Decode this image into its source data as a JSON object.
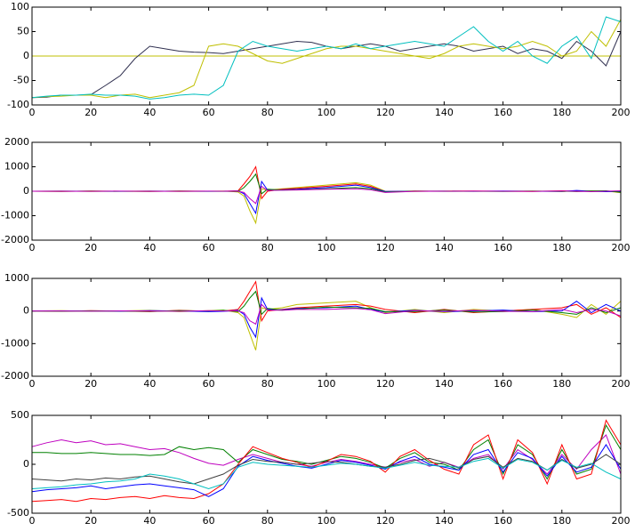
{
  "chart_data": [
    {
      "type": "line",
      "xlim": [
        0,
        200
      ],
      "xticks": [
        0,
        20,
        40,
        60,
        80,
        100,
        120,
        140,
        160,
        180,
        200
      ],
      "ylim": [
        -100,
        100
      ],
      "yticks": [
        -100,
        -50,
        0,
        50,
        100
      ],
      "x": [
        0,
        5,
        10,
        15,
        20,
        25,
        30,
        35,
        40,
        45,
        50,
        55,
        60,
        65,
        70,
        75,
        80,
        85,
        90,
        95,
        100,
        105,
        110,
        115,
        120,
        125,
        130,
        135,
        140,
        145,
        150,
        155,
        160,
        165,
        170,
        175,
        180,
        185,
        190,
        195,
        200
      ],
      "series": [
        {
          "color": "#bfbf00",
          "values": [
            0,
            0,
            0,
            0,
            0,
            0,
            0,
            0,
            0,
            0,
            0,
            0,
            0,
            0,
            0,
            0,
            0,
            0,
            0,
            0,
            0,
            0,
            0,
            0,
            0,
            0,
            0,
            0,
            0,
            0,
            0,
            0,
            0,
            0,
            0,
            0,
            0,
            0,
            0,
            0,
            0
          ]
        },
        {
          "color": "#303050",
          "values": [
            -85,
            -84,
            -80,
            -80,
            -79,
            -60,
            -40,
            -5,
            20,
            15,
            10,
            8,
            7,
            5,
            10,
            15,
            20,
            25,
            30,
            28,
            20,
            15,
            20,
            25,
            20,
            10,
            15,
            20,
            25,
            20,
            10,
            15,
            20,
            5,
            15,
            10,
            -5,
            30,
            10,
            -20,
            50
          ]
        },
        {
          "color": "#bfbf00",
          "values": [
            -85,
            -83,
            -82,
            -80,
            -80,
            -85,
            -80,
            -78,
            -85,
            -80,
            -75,
            -60,
            20,
            25,
            20,
            5,
            -10,
            -15,
            -5,
            5,
            15,
            20,
            20,
            15,
            10,
            5,
            0,
            -5,
            5,
            20,
            25,
            20,
            15,
            20,
            30,
            20,
            0,
            10,
            50,
            20,
            75
          ]
        },
        {
          "color": "#00bfbf",
          "values": [
            -85,
            -82,
            -80,
            -80,
            -78,
            -80,
            -80,
            -82,
            -88,
            -85,
            -80,
            -78,
            -80,
            -60,
            10,
            30,
            20,
            15,
            10,
            15,
            20,
            15,
            25,
            15,
            20,
            25,
            30,
            25,
            20,
            40,
            60,
            30,
            10,
            30,
            0,
            -15,
            20,
            40,
            -5,
            80,
            70
          ]
        }
      ]
    },
    {
      "type": "line",
      "xlim": [
        0,
        200
      ],
      "xticks": [
        0,
        20,
        40,
        60,
        80,
        100,
        120,
        140,
        160,
        180,
        200
      ],
      "ylim": [
        -2000,
        2000
      ],
      "yticks": [
        -2000,
        -1000,
        0,
        1000,
        2000
      ],
      "x": [
        0,
        10,
        20,
        30,
        40,
        50,
        60,
        65,
        70,
        72,
        74,
        76,
        78,
        80,
        85,
        90,
        100,
        110,
        115,
        120,
        130,
        140,
        150,
        160,
        170,
        180,
        185,
        190,
        195,
        200
      ],
      "series": [
        {
          "color": "#bfbf00",
          "values": [
            0,
            10,
            -10,
            0,
            10,
            -10,
            0,
            10,
            -30,
            -200,
            -800,
            -1300,
            100,
            50,
            100,
            150,
            250,
            350,
            250,
            0,
            -10,
            10,
            0,
            0,
            10,
            -10,
            20,
            0,
            10,
            -60
          ]
        },
        {
          "color": "#ff0000",
          "values": [
            0,
            -10,
            10,
            0,
            -10,
            10,
            0,
            0,
            20,
            300,
            600,
            1000,
            -300,
            0,
            80,
            120,
            200,
            300,
            200,
            -20,
            10,
            0,
            10,
            0,
            -10,
            20,
            -10,
            10,
            0,
            -30
          ]
        },
        {
          "color": "#0000ff",
          "values": [
            0,
            5,
            0,
            -5,
            5,
            0,
            -5,
            0,
            10,
            -100,
            -500,
            -900,
            400,
            50,
            60,
            80,
            150,
            250,
            150,
            -10,
            0,
            5,
            -5,
            10,
            0,
            -10,
            30,
            0,
            -20,
            -10
          ]
        },
        {
          "color": "#008000",
          "values": [
            0,
            -5,
            5,
            0,
            -5,
            5,
            0,
            -5,
            -10,
            150,
            400,
            700,
            -100,
            80,
            50,
            60,
            100,
            150,
            100,
            -30,
            5,
            -5,
            0,
            -10,
            5,
            0,
            -10,
            10,
            20,
            -40
          ]
        },
        {
          "color": "#bf00bf",
          "values": [
            0,
            0,
            -5,
            5,
            0,
            -5,
            5,
            0,
            0,
            -50,
            -300,
            -500,
            200,
            30,
            40,
            50,
            80,
            100,
            60,
            -50,
            -5,
            0,
            5,
            0,
            -5,
            10,
            0,
            -20,
            0,
            20
          ]
        }
      ]
    },
    {
      "type": "line",
      "xlim": [
        0,
        200
      ],
      "xticks": [
        0,
        20,
        40,
        60,
        80,
        100,
        120,
        140,
        160,
        180,
        200
      ],
      "ylim": [
        -2000,
        1000
      ],
      "yticks": [
        -2000,
        -1000,
        0,
        1000
      ],
      "x": [
        0,
        10,
        20,
        30,
        40,
        50,
        60,
        65,
        70,
        72,
        74,
        76,
        78,
        80,
        85,
        90,
        100,
        110,
        115,
        120,
        130,
        140,
        150,
        160,
        170,
        180,
        185,
        190,
        195,
        200
      ],
      "series": [
        {
          "color": "#bfbf00",
          "values": [
            0,
            10,
            -10,
            0,
            20,
            -20,
            10,
            30,
            -50,
            -200,
            -700,
            -1200,
            100,
            50,
            100,
            200,
            250,
            300,
            100,
            -50,
            50,
            -50,
            50,
            0,
            50,
            -100,
            -200,
            200,
            -100,
            300
          ]
        },
        {
          "color": "#ff0000",
          "values": [
            0,
            -10,
            10,
            0,
            -20,
            20,
            -10,
            0,
            50,
            300,
            600,
            900,
            -300,
            0,
            50,
            100,
            150,
            200,
            150,
            50,
            -50,
            50,
            -50,
            0,
            50,
            100,
            200,
            -100,
            100,
            -200
          ]
        },
        {
          "color": "#0000ff",
          "values": [
            0,
            5,
            0,
            -5,
            10,
            0,
            -20,
            -10,
            20,
            -100,
            -500,
            -800,
            400,
            50,
            40,
            80,
            100,
            150,
            50,
            -30,
            20,
            -20,
            0,
            30,
            -20,
            0,
            300,
            -50,
            200,
            0
          ]
        },
        {
          "color": "#008000",
          "values": [
            0,
            -5,
            5,
            0,
            -10,
            10,
            0,
            20,
            -20,
            150,
            400,
            600,
            -100,
            80,
            30,
            60,
            120,
            100,
            80,
            -20,
            -20,
            30,
            -30,
            -20,
            30,
            -50,
            -100,
            100,
            -50,
            100
          ]
        },
        {
          "color": "#bf00bf",
          "values": [
            0,
            0,
            -5,
            5,
            0,
            -10,
            10,
            0,
            0,
            -50,
            -300,
            -400,
            200,
            30,
            20,
            50,
            50,
            80,
            40,
            -80,
            10,
            -10,
            20,
            -10,
            -20,
            50,
            -50,
            50,
            0,
            -150
          ]
        }
      ]
    },
    {
      "type": "line",
      "xlim": [
        0,
        200
      ],
      "xticks": [
        0,
        20,
        40,
        60,
        80,
        100,
        120,
        140,
        160,
        180,
        200
      ],
      "ylim": [
        -500,
        500
      ],
      "yticks": [
        -500,
        0,
        500
      ],
      "x": [
        0,
        5,
        10,
        15,
        20,
        25,
        30,
        35,
        40,
        45,
        50,
        55,
        60,
        65,
        70,
        75,
        80,
        85,
        90,
        95,
        100,
        105,
        110,
        115,
        120,
        125,
        130,
        135,
        140,
        145,
        150,
        155,
        160,
        165,
        170,
        175,
        180,
        185,
        190,
        195,
        200
      ],
      "series": [
        {
          "color": "#bf00bf",
          "values": [
            180,
            220,
            250,
            220,
            240,
            200,
            210,
            180,
            150,
            160,
            120,
            60,
            10,
            -10,
            50,
            100,
            60,
            20,
            0,
            -20,
            20,
            50,
            30,
            0,
            -30,
            20,
            50,
            -20,
            20,
            -30,
            60,
            100,
            -50,
            150,
            50,
            -100,
            100,
            -50,
            150,
            300,
            -100
          ]
        },
        {
          "color": "#008000",
          "values": [
            120,
            120,
            110,
            110,
            120,
            110,
            100,
            100,
            90,
            100,
            180,
            150,
            170,
            150,
            20,
            150,
            100,
            50,
            30,
            0,
            40,
            80,
            60,
            20,
            -40,
            60,
            120,
            20,
            0,
            -60,
            150,
            250,
            -100,
            200,
            100,
            -150,
            150,
            -100,
            -50,
            400,
            150
          ]
        },
        {
          "color": "#ff0000",
          "values": [
            -380,
            -370,
            -360,
            -380,
            -350,
            -360,
            -340,
            -330,
            -350,
            -320,
            -340,
            -350,
            -300,
            -200,
            0,
            180,
            120,
            60,
            20,
            -30,
            30,
            100,
            80,
            30,
            -80,
            80,
            150,
            40,
            -50,
            -100,
            200,
            300,
            -150,
            250,
            120,
            -200,
            200,
            -150,
            -100,
            450,
            200
          ]
        },
        {
          "color": "#0000ff",
          "values": [
            -280,
            -260,
            -250,
            -240,
            -220,
            -250,
            -230,
            -210,
            -200,
            -220,
            -240,
            -260,
            -330,
            -250,
            -20,
            80,
            40,
            10,
            -20,
            -40,
            0,
            40,
            20,
            -10,
            -50,
            30,
            80,
            0,
            -30,
            -60,
            100,
            150,
            -80,
            120,
            60,
            -120,
            80,
            -80,
            -30,
            200,
            -50
          ]
        },
        {
          "color": "#404040",
          "values": [
            -150,
            -160,
            -170,
            -150,
            -160,
            -140,
            -150,
            -130,
            -120,
            -150,
            -180,
            -200,
            -150,
            -100,
            -10,
            50,
            30,
            20,
            0,
            10,
            30,
            20,
            0,
            -20,
            -30,
            0,
            40,
            60,
            20,
            -40,
            50,
            80,
            -30,
            60,
            30,
            -60,
            50,
            -40,
            0,
            100,
            0
          ]
        },
        {
          "color": "#00bfbf",
          "values": [
            -250,
            -240,
            -230,
            -210,
            -200,
            -180,
            -170,
            -150,
            -100,
            -120,
            -150,
            -200,
            -250,
            -200,
            -30,
            20,
            0,
            -10,
            -20,
            -30,
            -10,
            10,
            0,
            -20,
            -40,
            -10,
            20,
            -10,
            -20,
            -30,
            30,
            60,
            -40,
            50,
            20,
            -60,
            40,
            -30,
            10,
            -80,
            -150
          ]
        }
      ]
    }
  ]
}
